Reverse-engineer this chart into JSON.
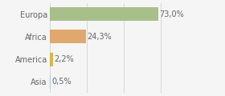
{
  "categories": [
    "Europa",
    "Africa",
    "America",
    "Asia"
  ],
  "values": [
    73.0,
    24.3,
    2.2,
    0.5
  ],
  "labels": [
    "73,0%",
    "24,3%",
    "2,2%",
    "0,5%"
  ],
  "bar_colors": [
    "#a8bf8a",
    "#e0a86e",
    "#d4b84a",
    "#aec6d8"
  ],
  "background_color": "#f5f5f5",
  "bar_height": 0.6,
  "xlim": [
    0,
    100
  ],
  "label_fontsize": 7,
  "pct_fontsize": 7,
  "text_color": "#666666"
}
